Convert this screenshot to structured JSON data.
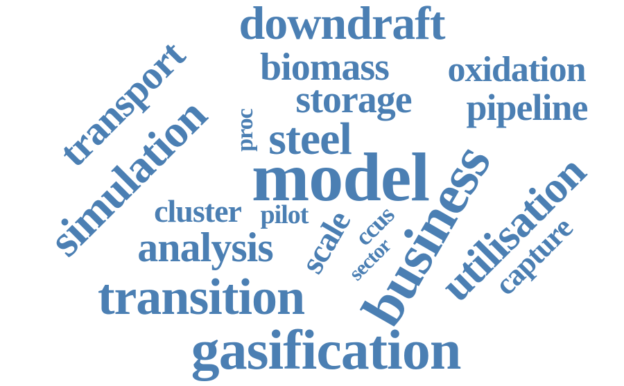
{
  "cloud": {
    "color": "#4b7fb3",
    "words": [
      {
        "text": "downdraft"
      },
      {
        "text": "biomass"
      },
      {
        "text": "oxidation"
      },
      {
        "text": "storage"
      },
      {
        "text": "pipeline"
      },
      {
        "text": "transport"
      },
      {
        "text": "simulation"
      },
      {
        "text": "proc"
      },
      {
        "text": "steel"
      },
      {
        "text": "model"
      },
      {
        "text": "business"
      },
      {
        "text": "utilisation"
      },
      {
        "text": "capture"
      },
      {
        "text": "cluster"
      },
      {
        "text": "pilot"
      },
      {
        "text": "scale"
      },
      {
        "text": "ccus"
      },
      {
        "text": "sector"
      },
      {
        "text": "analysis"
      },
      {
        "text": "transition"
      },
      {
        "text": "gasification"
      }
    ]
  }
}
